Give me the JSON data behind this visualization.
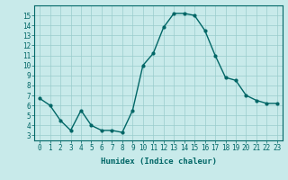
{
  "x": [
    0,
    1,
    2,
    3,
    4,
    5,
    6,
    7,
    8,
    9,
    10,
    11,
    12,
    13,
    14,
    15,
    16,
    17,
    18,
    19,
    20,
    21,
    22,
    23
  ],
  "y": [
    6.7,
    6.0,
    4.5,
    3.5,
    5.5,
    4.0,
    3.5,
    3.5,
    3.3,
    5.5,
    10.0,
    11.2,
    13.8,
    15.2,
    15.2,
    15.0,
    13.5,
    11.0,
    8.8,
    8.5,
    7.0,
    6.5,
    6.2,
    6.2
  ],
  "xlabel": "Humidex (Indice chaleur)",
  "xlim": [
    -0.5,
    23.5
  ],
  "ylim": [
    2.5,
    16.0
  ],
  "yticks": [
    3,
    4,
    5,
    6,
    7,
    8,
    9,
    10,
    11,
    12,
    13,
    14,
    15
  ],
  "xticks": [
    0,
    1,
    2,
    3,
    4,
    5,
    6,
    7,
    8,
    9,
    10,
    11,
    12,
    13,
    14,
    15,
    16,
    17,
    18,
    19,
    20,
    21,
    22,
    23
  ],
  "line_color": "#006666",
  "marker_size": 2.0,
  "bg_color": "#c8eaea",
  "grid_color": "#99cccc",
  "line_width": 1.0,
  "tick_fontsize": 5.5,
  "xlabel_fontsize": 6.5
}
